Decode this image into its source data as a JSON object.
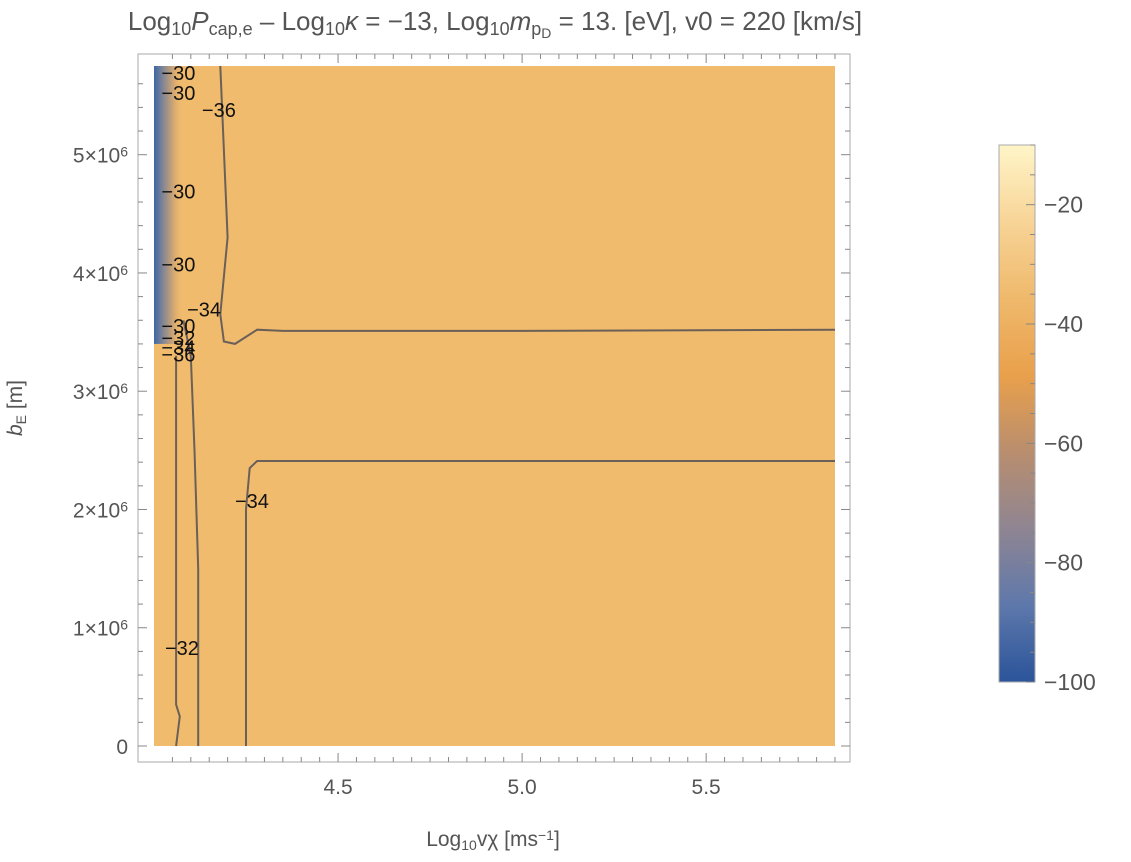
{
  "chart_data": {
    "type": "heatmap",
    "title_parts": [
      "Log",
      "10",
      "P",
      "cap,e",
      " – Log",
      "10",
      "κ",
      " = −13, Log",
      "10",
      "m",
      "p",
      "D",
      " = 13. [eV], v0 = 220 [km/s]"
    ],
    "xlabel_parts": [
      "Log",
      "10",
      "vχ [ms",
      "−1",
      "]"
    ],
    "ylabel_parts": [
      "b",
      "E",
      " [m]"
    ],
    "xlim": [
      4.0,
      5.85
    ],
    "ylim": [
      0,
      5750000
    ],
    "x_ticks": [
      {
        "value": 4.5,
        "label": "4.5"
      },
      {
        "value": 5.0,
        "label": "5.0"
      },
      {
        "value": 5.5,
        "label": "5.5"
      }
    ],
    "y_ticks": [
      {
        "value": 0,
        "label": "0"
      },
      {
        "value": 1000000,
        "label": "1×10",
        "exp": "6"
      },
      {
        "value": 2000000,
        "label": "2×10",
        "exp": "6"
      },
      {
        "value": 3000000,
        "label": "3×10",
        "exp": "6"
      },
      {
        "value": 4000000,
        "label": "4×10",
        "exp": "6"
      },
      {
        "value": 5000000,
        "label": "5×10",
        "exp": "6"
      }
    ],
    "colorbar": {
      "range": [
        -100,
        -10
      ],
      "ticks": [
        {
          "value": -20,
          "label": "−20"
        },
        {
          "value": -40,
          "label": "−40"
        },
        {
          "value": -60,
          "label": "−60"
        },
        {
          "value": -80,
          "label": "−80"
        },
        {
          "value": -100,
          "label": "−100"
        }
      ],
      "colors": [
        "#fff5c8",
        "#f7d497",
        "#efb96c",
        "#e9a04b",
        "#b98e6e",
        "#8f8592",
        "#5e78ab",
        "#2b549a"
      ]
    },
    "background_color": "#f1bb6e",
    "contour_color": "#6b6058",
    "contours": [
      {
        "level": -34,
        "points": [
          [
            4.18,
            5750000
          ],
          [
            4.2,
            4300000
          ],
          [
            4.18,
            3650000
          ],
          [
            4.19,
            3420000
          ],
          [
            4.22,
            3400000
          ],
          [
            4.28,
            3520000
          ],
          [
            4.35,
            3510000
          ],
          [
            5.0,
            3510000
          ],
          [
            5.85,
            3520000
          ]
        ]
      },
      {
        "level": -34,
        "points": [
          [
            4.25,
            0
          ],
          [
            4.25,
            2000000
          ],
          [
            4.26,
            2350000
          ],
          [
            4.28,
            2410000
          ],
          [
            5.0,
            2410000
          ],
          [
            5.85,
            2410000
          ]
        ]
      },
      {
        "level": -32,
        "points": [
          [
            4.12,
            0
          ],
          [
            4.12,
            1500000
          ],
          [
            4.11,
            2500000
          ],
          [
            4.1,
            3300000
          ],
          [
            4.08,
            3600000
          ]
        ]
      },
      {
        "level": -30,
        "points": [
          [
            4.06,
            0
          ],
          [
            4.07,
            250000
          ],
          [
            4.06,
            350000
          ],
          [
            4.06,
            2500000
          ],
          [
            4.06,
            3300000
          ]
        ]
      }
    ],
    "contour_labels": [
      {
        "text": "−30",
        "x": 4.02,
        "y": 5690000
      },
      {
        "text": "−30",
        "x": 4.02,
        "y": 5520000
      },
      {
        "text": "−36",
        "x": 4.13,
        "y": 5380000
      },
      {
        "text": "−30",
        "x": 4.02,
        "y": 4690000
      },
      {
        "text": "−30",
        "x": 4.02,
        "y": 4070000
      },
      {
        "text": "−34",
        "x": 4.09,
        "y": 3690000
      },
      {
        "text": "−30",
        "x": 4.02,
        "y": 3550000
      },
      {
        "text": "−32",
        "x": 4.02,
        "y": 3450000
      },
      {
        "text": "−34",
        "x": 4.02,
        "y": 3370000
      },
      {
        "text": "−36",
        "x": 4.02,
        "y": 3310000
      },
      {
        "text": "−34",
        "x": 4.22,
        "y": 2070000
      },
      {
        "text": "−32",
        "x": 4.03,
        "y": 830000
      }
    ]
  }
}
